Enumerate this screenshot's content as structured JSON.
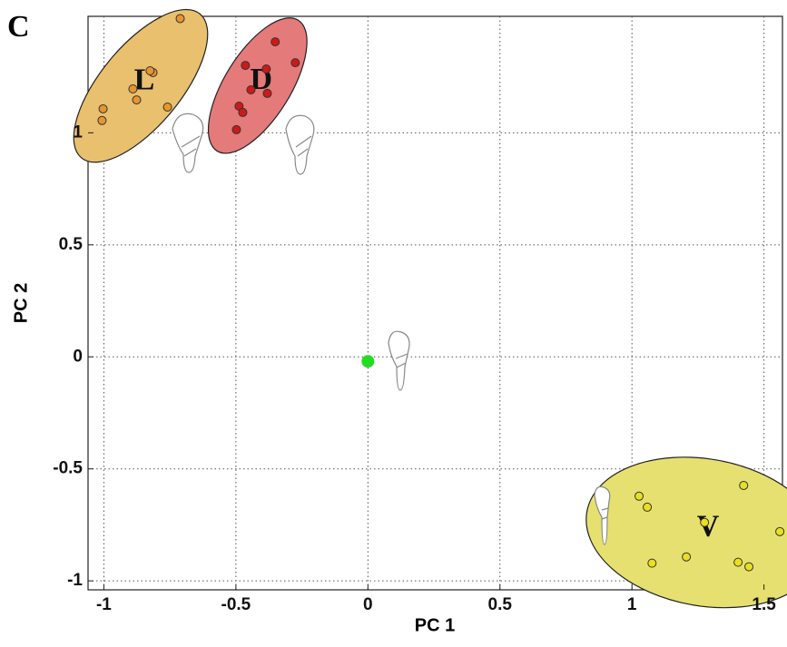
{
  "chart_data": {
    "type": "scatter",
    "panel_label": "C",
    "x_label": "PC 1",
    "y_label": "PC 2",
    "xlim": [
      -1.06,
      1.57
    ],
    "ylim": [
      -1.04,
      1.52
    ],
    "xticks": [
      -1,
      -0.5,
      0,
      0.5,
      1,
      1.5
    ],
    "yticks": [
      -1,
      -0.5,
      0,
      0.5,
      1
    ],
    "grid": true,
    "series": [
      {
        "name": "L",
        "color": "#e8952e",
        "fill": "#e8c06e",
        "x": [
          -0.711,
          -0.814,
          -0.825,
          -0.89,
          -0.876,
          -0.759,
          -1.003,
          -1.007
        ],
        "y": [
          1.51,
          1.269,
          1.277,
          1.196,
          1.147,
          1.115,
          1.107,
          1.055
        ]
      },
      {
        "name": "D",
        "color": "#cc1a1a",
        "fill": "#e47a7a",
        "x": [
          -0.351,
          -0.464,
          -0.385,
          -0.275,
          -0.443,
          -0.381,
          -0.488,
          -0.474,
          -0.498
        ],
        "y": [
          1.406,
          1.301,
          1.285,
          1.313,
          1.192,
          1.176,
          1.119,
          1.091,
          1.014
        ]
      },
      {
        "name": "V",
        "color": "#e8e020",
        "fill": "#e6e070",
        "x": [
          1.423,
          1.027,
          1.058,
          1.275,
          1.56,
          1.206,
          1.076,
          1.402,
          1.443
        ],
        "y": [
          -0.574,
          -0.622,
          -0.671,
          -0.739,
          -0.78,
          -0.893,
          -0.921,
          -0.917,
          -0.937
        ]
      }
    ],
    "center_point": {
      "x": 0,
      "y": -0.02,
      "color": "#22dd22"
    }
  }
}
